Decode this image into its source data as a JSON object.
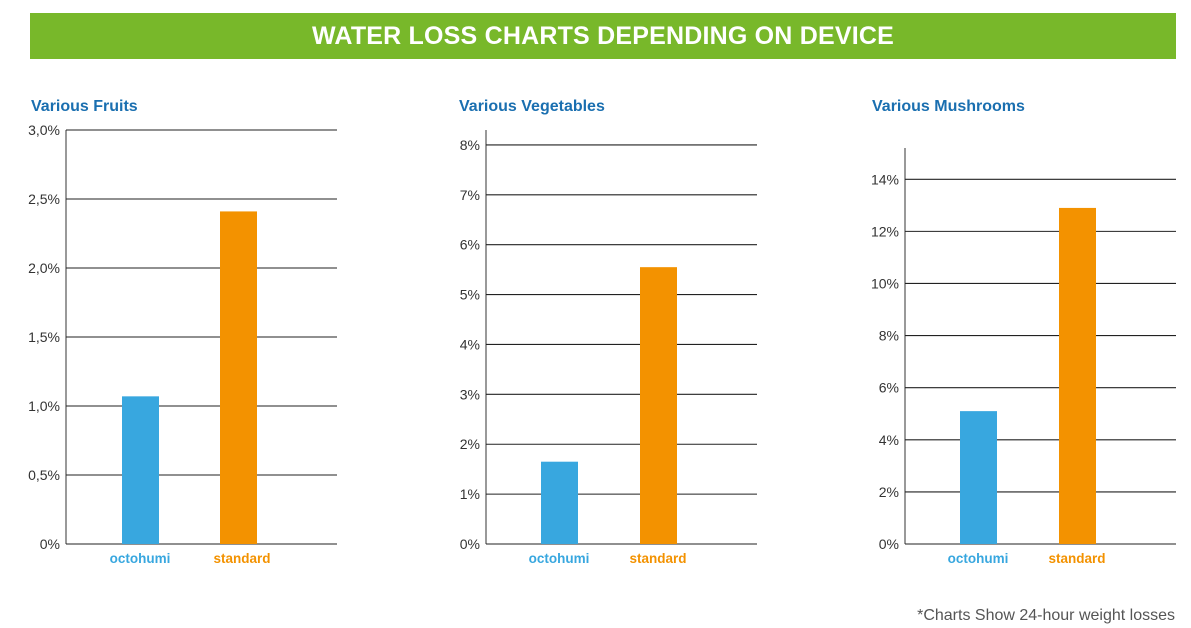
{
  "banner": {
    "title": "WATER LOSS CHARTS DEPENDING ON DEVICE"
  },
  "colors": {
    "banner": "#78b82a",
    "octohumi": "#38a7df",
    "standard": "#f39200",
    "title": "#1a6fb0"
  },
  "footnote": "*Charts Show 24-hour weight losses",
  "chart_data": [
    {
      "type": "bar",
      "title": "Various Fruits",
      "categories": [
        "octohumi",
        "standard"
      ],
      "values": [
        1.07,
        2.41
      ],
      "ylim": [
        0,
        3.0
      ],
      "yticks": [
        0,
        0.5,
        1.0,
        1.5,
        2.0,
        2.5,
        3.0
      ],
      "ytick_labels": [
        "0%",
        "0,5%",
        "1,0%",
        "1,5%",
        "2,0%",
        "2,5%",
        "3,0%"
      ],
      "grid": true
    },
    {
      "type": "bar",
      "title": "Various Vegetables",
      "categories": [
        "octohumi",
        "standard"
      ],
      "values": [
        1.65,
        5.55
      ],
      "ylim": [
        0,
        8.3
      ],
      "yticks": [
        0,
        1,
        2,
        3,
        4,
        5,
        6,
        7,
        8
      ],
      "ytick_labels": [
        "0%",
        "1%",
        "2%",
        "3%",
        "4%",
        "5%",
        "6%",
        "7%",
        "8%"
      ],
      "grid": true
    },
    {
      "type": "bar",
      "title": "Various Mushrooms",
      "categories": [
        "octohumi",
        "standard"
      ],
      "values": [
        5.1,
        12.9
      ],
      "ylim": [
        0,
        15.2
      ],
      "yticks": [
        0,
        2,
        4,
        6,
        8,
        10,
        12,
        14
      ],
      "ytick_labels": [
        "0%",
        "2%",
        "4%",
        "6%",
        "8%",
        "10%",
        "12%",
        "14%"
      ],
      "grid": true
    }
  ]
}
